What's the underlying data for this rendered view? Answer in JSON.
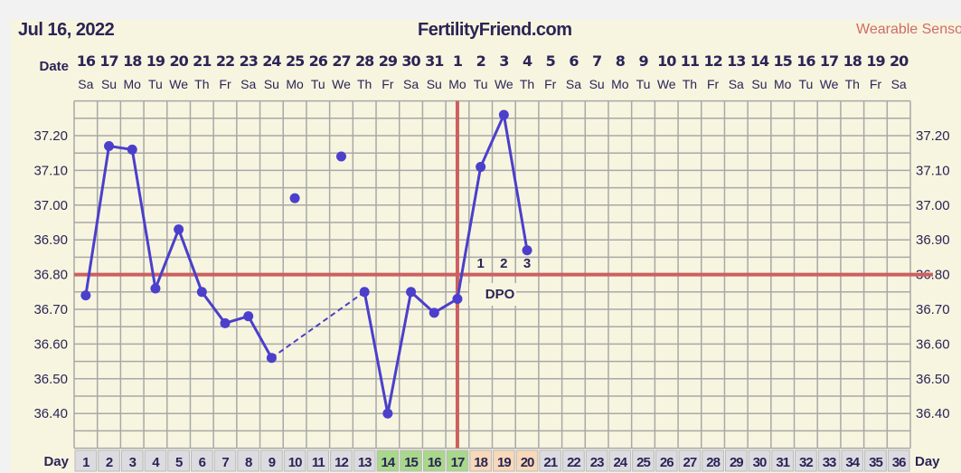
{
  "header": {
    "date": "Jul 16, 2022",
    "site": "FertilityFriend.com",
    "sensor_label": "Wearable Senso"
  },
  "labels": {
    "date_row": "Date",
    "day_row": "Day",
    "dpo": "DPO"
  },
  "colors": {
    "line": "#4b3fcc",
    "coverline": "#cc6060",
    "grid": "#a8a8a8",
    "text": "#2b2457",
    "fertile": "#a8d88a",
    "luteal": "#f7d9b8",
    "cell": "#dcdce0",
    "background": "#f7f5df"
  },
  "chart_data": {
    "type": "line",
    "title": "",
    "ylim": [
      36.3,
      37.3
    ],
    "y_ticks": [
      "37.20",
      "37.10",
      "37.00",
      "36.90",
      "36.80",
      "36.70",
      "36.60",
      "36.50",
      "36.40"
    ],
    "y_tick_values": [
      37.2,
      37.1,
      37.0,
      36.9,
      36.8,
      36.7,
      36.6,
      36.5,
      36.4
    ],
    "grid": true,
    "dates": [
      "16",
      "17",
      "18",
      "19",
      "20",
      "21",
      "22",
      "23",
      "24",
      "25",
      "26",
      "27",
      "28",
      "29",
      "30",
      "31",
      "1",
      "2",
      "3",
      "4",
      "5",
      "6",
      "7",
      "8",
      "9",
      "10",
      "11",
      "12",
      "13",
      "14",
      "15",
      "16",
      "17",
      "18",
      "19",
      "20"
    ],
    "weekdays": [
      "Sa",
      "Su",
      "Mo",
      "Tu",
      "We",
      "Th",
      "Fr",
      "Sa",
      "Su",
      "Mo",
      "Tu",
      "We",
      "Th",
      "Fr",
      "Sa",
      "Su",
      "Mo",
      "Tu",
      "We",
      "Th",
      "Fr",
      "Sa",
      "Su",
      "Mo",
      "Tu",
      "We",
      "Th",
      "Fr",
      "Sa",
      "Su",
      "Mo",
      "Tu",
      "We",
      "Th",
      "Fr",
      "Sa"
    ],
    "days": [
      "1",
      "2",
      "3",
      "4",
      "5",
      "6",
      "7",
      "8",
      "9",
      "10",
      "11",
      "12",
      "13",
      "14",
      "15",
      "16",
      "17",
      "18",
      "19",
      "20",
      "21",
      "22",
      "23",
      "24",
      "25",
      "26",
      "27",
      "28",
      "29",
      "30",
      "31",
      "32",
      "33",
      "34",
      "35",
      "36"
    ],
    "temperatures": [
      36.74,
      37.17,
      37.16,
      36.76,
      36.93,
      36.75,
      36.66,
      36.68,
      36.56,
      37.02,
      null,
      37.14,
      36.75,
      36.4,
      36.75,
      36.69,
      36.73,
      37.11,
      37.26,
      36.87
    ],
    "discarded_days": [
      10,
      12
    ],
    "dashed_segment": [
      9,
      13
    ],
    "coverline": 36.8,
    "ovulation_day": 17,
    "fertile_days": [
      14,
      15,
      16,
      17
    ],
    "dpo_days": [
      18,
      19,
      20
    ],
    "dpo_labels": [
      "1",
      "2",
      "3"
    ]
  }
}
